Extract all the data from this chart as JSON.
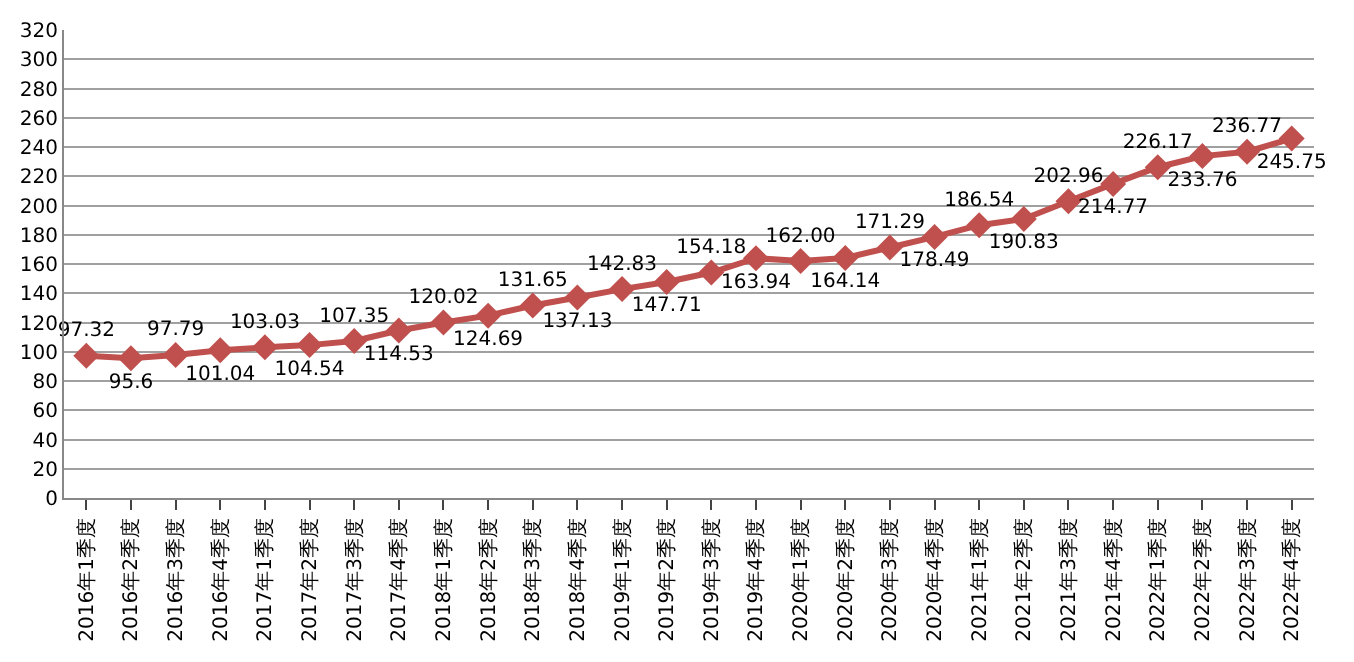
{
  "chart_data": {
    "type": "line",
    "categories": [
      "2016年1季度",
      "2016年2季度",
      "2016年3季度",
      "2016年4季度",
      "2017年1季度",
      "2017年2季度",
      "2017年3季度",
      "2017年4季度",
      "2018年1季度",
      "2018年2季度",
      "2018年3季度",
      "2018年4季度",
      "2019年1季度",
      "2019年2季度",
      "2019年3季度",
      "2019年4季度",
      "2020年1季度",
      "2020年2季度",
      "2020年3季度",
      "2020年4季度",
      "2021年1季度",
      "2021年2季度",
      "2021年3季度",
      "2021年4季度",
      "2022年1季度",
      "2022年2季度",
      "2022年3季度",
      "2022年4季度"
    ],
    "series": [
      {
        "color": "#c0504d",
        "values": [
          97.32,
          95.6,
          97.79,
          101.04,
          103.03,
          104.54,
          107.35,
          114.53,
          120.02,
          124.69,
          131.65,
          137.13,
          142.83,
          147.71,
          154.18,
          163.94,
          162.0,
          164.14,
          171.29,
          178.49,
          186.54,
          190.83,
          202.96,
          214.77,
          226.17,
          233.76,
          236.77,
          245.75
        ],
        "value_labels": [
          "97.32",
          "95.6",
          "97.79",
          "101.04",
          "103.03",
          "104.54",
          "107.35",
          "114.53",
          "120.02",
          "124.69",
          "131.65",
          "137.13",
          "142.83",
          "147.71",
          "154.18",
          "163.94",
          "162.00",
          "164.14",
          "171.29",
          "178.49",
          "186.54",
          "190.83",
          "202.96",
          "214.77",
          "226.17",
          "233.76",
          "236.77",
          "245.75"
        ]
      }
    ],
    "ylim": [
      0,
      320
    ],
    "yticks": [
      0,
      20,
      40,
      60,
      80,
      100,
      120,
      140,
      160,
      180,
      200,
      220,
      240,
      260,
      280,
      300,
      320
    ],
    "grid": "y",
    "marker": "diamond",
    "line_style": "solid"
  }
}
